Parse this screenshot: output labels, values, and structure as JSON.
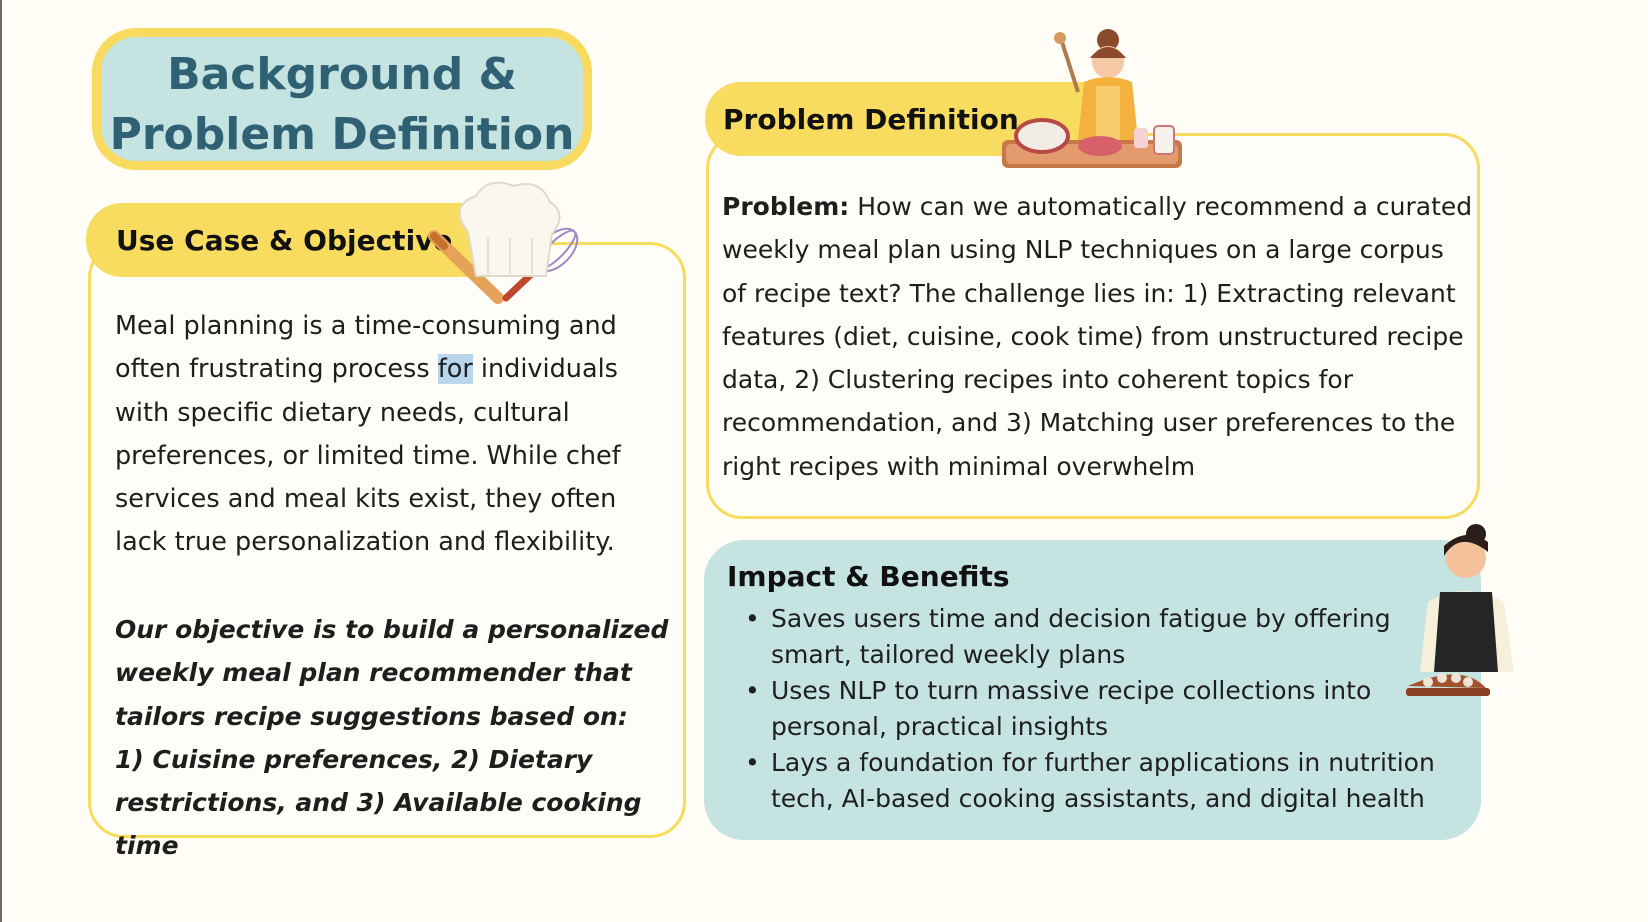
{
  "title": {
    "line1": "Background &",
    "line2": "Problem Definition"
  },
  "use_case": {
    "heading": "Use Case & Objective",
    "p1_before": "Meal planning is a time-consuming and often frustrating process ",
    "p1_highlight": "for",
    "p1_after": " individuals with specific dietary needs, cultural preferences, or limited time. While chef services and meal kits exist, they often lack true personalization and flexibility.",
    "objective": "Our objective is to build a personalized weekly meal plan recommender that tailors recipe suggestions based on:",
    "objective_list": "1) Cuisine preferences, 2) Dietary restrictions, and 3) Available cooking time"
  },
  "problem": {
    "heading": "Problem Definition",
    "label": "Problem:",
    "text": " How can we automatically recommend a curated weekly meal plan using NLP techniques on a large corpus of recipe text? The challenge lies in: 1) Extracting relevant features (diet, cuisine, cook time) from unstructured recipe data, 2) Clustering recipes into coherent topics for recommendation, and 3) Matching user preferences to the right recipes with minimal overwhelm"
  },
  "impact": {
    "heading": "Impact & Benefits",
    "items": [
      "Saves users time and decision fatigue by offering smart, tailored weekly plans",
      "Uses NLP to turn massive recipe collections into personal, practical insights",
      "Lays a foundation for further applications in nutrition tech, AI-based cooking assistants, and digital health"
    ]
  },
  "colors": {
    "yellow": "#f8dc5f",
    "teal": "#c5e3e1",
    "title_text": "#2f6073"
  },
  "icons": [
    "chef-hat-icon",
    "whisk-icon",
    "rolling-pin-icon",
    "cook-woman-illustration",
    "chef-woman-illustration"
  ]
}
